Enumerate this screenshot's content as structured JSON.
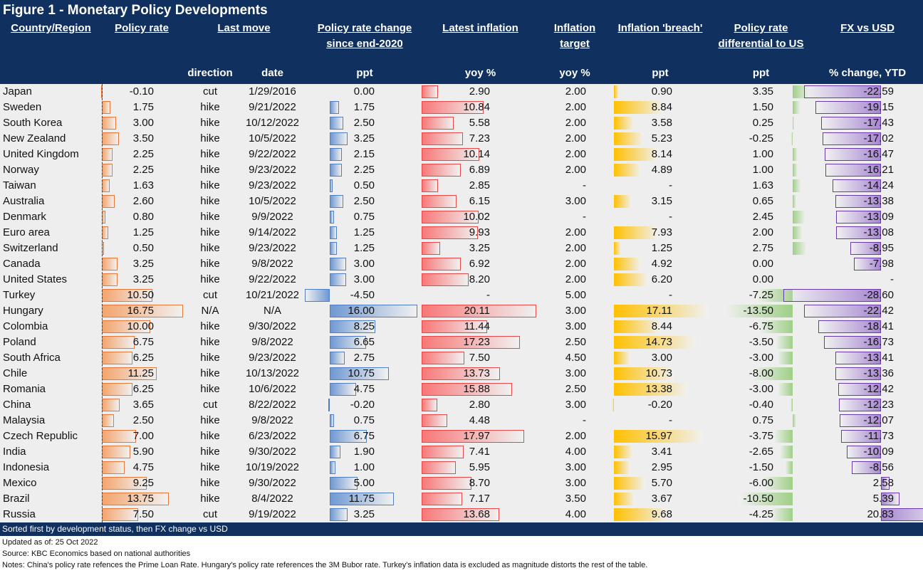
{
  "title": "Figure 1 - Monetary Policy Developments",
  "headers": {
    "country": "Country/Region",
    "policy_rate": "Policy rate",
    "last_move": "Last move",
    "rate_change_1": "Policy rate change",
    "rate_change_2": "since end-2020",
    "latest_inflation": "Latest inflation",
    "target_1": "Inflation",
    "target_2": "target",
    "breach": "Inflation 'breach'",
    "diff_1": "Policy rate",
    "diff_2": "differential to US",
    "fx": "FX vs USD"
  },
  "subheaders": {
    "direction": "direction",
    "date": "date",
    "change_unit": "ppt",
    "inflation_unit": "yoy %",
    "target_unit": "yoy %",
    "breach_unit": "ppt",
    "diff_unit": "ppt",
    "fx_unit": "% change, YTD"
  },
  "colors": {
    "header_bg": "#10305f",
    "policy_bar": "#f4a46c",
    "change_bar": "#6f98d2",
    "inflation_bar": "#f87878",
    "breach_bar": "#ffc000",
    "diff_bar": "#9fcf87",
    "fx_bar": "#a788d2"
  },
  "rows": [
    {
      "country": "Japan",
      "rate": "-0.10",
      "direction": "cut",
      "date": "1/29/2016",
      "change": "0.00",
      "inflation": "2.90",
      "target": "2.00",
      "breach": "0.90",
      "diff": "3.35",
      "fx": "-22.59"
    },
    {
      "country": "Sweden",
      "rate": "1.75",
      "direction": "hike",
      "date": "9/21/2022",
      "change": "1.75",
      "inflation": "10.84",
      "target": "2.00",
      "breach": "8.84",
      "diff": "1.50",
      "fx": "-19.15"
    },
    {
      "country": "South Korea",
      "rate": "3.00",
      "direction": "hike",
      "date": "10/12/2022",
      "change": "2.50",
      "inflation": "5.58",
      "target": "2.00",
      "breach": "3.58",
      "diff": "0.25",
      "fx": "-17.43"
    },
    {
      "country": "New Zealand",
      "rate": "3.50",
      "direction": "hike",
      "date": "10/5/2022",
      "change": "3.25",
      "inflation": "7.23",
      "target": "2.00",
      "breach": "5.23",
      "diff": "-0.25",
      "fx": "-17.02"
    },
    {
      "country": "United Kingdom",
      "rate": "2.25",
      "direction": "hike",
      "date": "9/22/2022",
      "change": "2.15",
      "inflation": "10.14",
      "target": "2.00",
      "breach": "8.14",
      "diff": "1.00",
      "fx": "-16.47"
    },
    {
      "country": "Norway",
      "rate": "2.25",
      "direction": "hike",
      "date": "9/23/2022",
      "change": "2.25",
      "inflation": "6.89",
      "target": "2.00",
      "breach": "4.89",
      "diff": "1.00",
      "fx": "-16.21"
    },
    {
      "country": "Taiwan",
      "rate": "1.63",
      "direction": "hike",
      "date": "9/23/2022",
      "change": "0.50",
      "inflation": "2.85",
      "target": "-",
      "breach": "-",
      "diff": "1.63",
      "fx": "-14.24"
    },
    {
      "country": "Australia",
      "rate": "2.60",
      "direction": "hike",
      "date": "10/5/2022",
      "change": "2.50",
      "inflation": "6.15",
      "target": "3.00",
      "breach": "3.15",
      "diff": "0.65",
      "fx": "-13.38"
    },
    {
      "country": "Denmark",
      "rate": "0.80",
      "direction": "hike",
      "date": "9/9/2022",
      "change": "0.75",
      "inflation": "10.02",
      "target": "-",
      "breach": "-",
      "diff": "2.45",
      "fx": "-13.09"
    },
    {
      "country": "Euro area",
      "rate": "1.25",
      "direction": "hike",
      "date": "9/14/2022",
      "change": "1.25",
      "inflation": "9.93",
      "target": "2.00",
      "breach": "7.93",
      "diff": "2.00",
      "fx": "-13.08"
    },
    {
      "country": "Switzerland",
      "rate": "0.50",
      "direction": "hike",
      "date": "9/23/2022",
      "change": "1.25",
      "inflation": "3.25",
      "target": "2.00",
      "breach": "1.25",
      "diff": "2.75",
      "fx": "-8.95"
    },
    {
      "country": "Canada",
      "rate": "3.25",
      "direction": "hike",
      "date": "9/8/2022",
      "change": "3.00",
      "inflation": "6.92",
      "target": "2.00",
      "breach": "4.92",
      "diff": "0.00",
      "fx": "-7.98"
    },
    {
      "country": "United States",
      "rate": "3.25",
      "direction": "hike",
      "date": "9/22/2022",
      "change": "3.00",
      "inflation": "8.20",
      "target": "2.00",
      "breach": "6.20",
      "diff": "0.00",
      "fx": "-"
    },
    {
      "country": "Turkey",
      "rate": "10.50",
      "direction": "cut",
      "date": "10/21/2022",
      "change": "-4.50",
      "inflation": "-",
      "target": "5.00",
      "breach": "-",
      "diff": "-7.25",
      "fx": "-28.60"
    },
    {
      "country": "Hungary",
      "rate": "16.75",
      "direction": "N/A",
      "date": "N/A",
      "change": "16.00",
      "inflation": "20.11",
      "target": "3.00",
      "breach": "17.11",
      "diff": "-13.50",
      "fx": "-22.42"
    },
    {
      "country": "Colombia",
      "rate": "10.00",
      "direction": "hike",
      "date": "9/30/2022",
      "change": "8.25",
      "inflation": "11.44",
      "target": "3.00",
      "breach": "8.44",
      "diff": "-6.75",
      "fx": "-18.41"
    },
    {
      "country": "Poland",
      "rate": "6.75",
      "direction": "hike",
      "date": "9/8/2022",
      "change": "6.65",
      "inflation": "17.23",
      "target": "2.50",
      "breach": "14.73",
      "diff": "-3.50",
      "fx": "-16.73"
    },
    {
      "country": "South Africa",
      "rate": "6.25",
      "direction": "hike",
      "date": "9/23/2022",
      "change": "2.75",
      "inflation": "7.50",
      "target": "4.50",
      "breach": "3.00",
      "diff": "-3.00",
      "fx": "-13.41"
    },
    {
      "country": "Chile",
      "rate": "11.25",
      "direction": "hike",
      "date": "10/13/2022",
      "change": "10.75",
      "inflation": "13.73",
      "target": "3.00",
      "breach": "10.73",
      "diff": "-8.00",
      "fx": "-13.36"
    },
    {
      "country": "Romania",
      "rate": "6.25",
      "direction": "hike",
      "date": "10/6/2022",
      "change": "4.75",
      "inflation": "15.88",
      "target": "2.50",
      "breach": "13.38",
      "diff": "-3.00",
      "fx": "-12.42"
    },
    {
      "country": "China",
      "rate": "3.65",
      "direction": "cut",
      "date": "8/22/2022",
      "change": "-0.20",
      "inflation": "2.80",
      "target": "3.00",
      "breach": "-0.20",
      "diff": "-0.40",
      "fx": "-12.23"
    },
    {
      "country": "Malaysia",
      "rate": "2.50",
      "direction": "hike",
      "date": "9/8/2022",
      "change": "0.75",
      "inflation": "4.48",
      "target": "-",
      "breach": "-",
      "diff": "0.75",
      "fx": "-12.07"
    },
    {
      "country": "Czech Republic",
      "rate": "7.00",
      "direction": "hike",
      "date": "6/23/2022",
      "change": "6.75",
      "inflation": "17.97",
      "target": "2.00",
      "breach": "15.97",
      "diff": "-3.75",
      "fx": "-11.73"
    },
    {
      "country": "India",
      "rate": "5.90",
      "direction": "hike",
      "date": "9/30/2022",
      "change": "1.90",
      "inflation": "7.41",
      "target": "4.00",
      "breach": "3.41",
      "diff": "-2.65",
      "fx": "-10.09"
    },
    {
      "country": "Indonesia",
      "rate": "4.75",
      "direction": "hike",
      "date": "10/19/2022",
      "change": "1.00",
      "inflation": "5.95",
      "target": "3.00",
      "breach": "2.95",
      "diff": "-1.50",
      "fx": "-8.56"
    },
    {
      "country": "Mexico",
      "rate": "9.25",
      "direction": "hike",
      "date": "9/30/2022",
      "change": "5.00",
      "inflation": "8.70",
      "target": "3.00",
      "breach": "5.70",
      "diff": "-6.00",
      "fx": "2.58"
    },
    {
      "country": "Brazil",
      "rate": "13.75",
      "direction": "hike",
      "date": "8/4/2022",
      "change": "11.75",
      "inflation": "7.17",
      "target": "3.50",
      "breach": "3.67",
      "diff": "-10.50",
      "fx": "5.39"
    },
    {
      "country": "Russia",
      "rate": "7.50",
      "direction": "cut",
      "date": "9/19/2022",
      "change": "3.25",
      "inflation": "13.68",
      "target": "4.00",
      "breach": "9.68",
      "diff": "-4.25",
      "fx": "20.83"
    }
  ],
  "footer": {
    "sort_note": "Sorted first by development status, then FX change vs USD",
    "updated": "Updated as of: 25 Oct 2022",
    "source": "Source: KBC Economics based on national authorities",
    "notes": "Notes: China's policy rate refences the Prime Loan Rate. Hungary's policy rate references the 3M Bubor rate. Turkey's inflation data is excluded as magnitude distorts the rest of the table."
  }
}
